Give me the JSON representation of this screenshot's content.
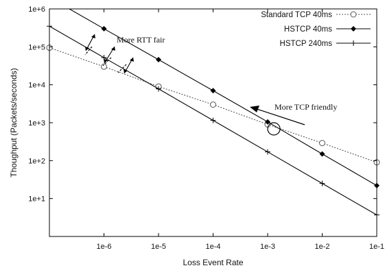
{
  "chart_data": {
    "type": "line",
    "xlabel": "Loss Event Rate",
    "ylabel": "Thoughput (Packets/seconds)",
    "xscale": "log",
    "yscale": "log",
    "xlim": [
      1e-07,
      0.1
    ],
    "ylim": [
      1,
      1000000
    ],
    "x_ticks": [
      {
        "value": 1e-06,
        "label": "1e-6"
      },
      {
        "value": 1e-05,
        "label": "1e-5"
      },
      {
        "value": 0.0001,
        "label": "1e-4"
      },
      {
        "value": 0.001,
        "label": "1e-3"
      },
      {
        "value": 0.01,
        "label": "1e-2"
      },
      {
        "value": 0.1,
        "label": "1e-1"
      }
    ],
    "y_ticks": [
      {
        "value": 10,
        "label": "1e+1"
      },
      {
        "value": 100,
        "label": "1e+2"
      },
      {
        "value": 1000,
        "label": "1e+3"
      },
      {
        "value": 10000,
        "label": "1e+4"
      },
      {
        "value": 100000,
        "label": "1e+5"
      },
      {
        "value": 1000000,
        "label": "1e+6"
      }
    ],
    "grid": false,
    "legend_position": "top-right",
    "series": [
      {
        "name": "Standard TCP 40ms",
        "style": "dotted",
        "marker": "open-circle",
        "color": "#000000",
        "points": [
          {
            "x": 1e-07,
            "y": 95000
          },
          {
            "x": 1e-06,
            "y": 30000
          },
          {
            "x": 1e-05,
            "y": 9000
          },
          {
            "x": 0.0001,
            "y": 3000
          },
          {
            "x": 0.001,
            "y": 900
          },
          {
            "x": 0.01,
            "y": 290
          },
          {
            "x": 0.1,
            "y": 90
          }
        ]
      },
      {
        "name": "HSTCP 40ms",
        "style": "solid",
        "marker": "filled-diamond",
        "color": "#000000",
        "points": [
          {
            "x": 1e-07,
            "y": 2000000
          },
          {
            "x": 1e-06,
            "y": 300000
          },
          {
            "x": 1e-05,
            "y": 46000
          },
          {
            "x": 0.0001,
            "y": 7000
          },
          {
            "x": 0.001,
            "y": 1050
          },
          {
            "x": 0.01,
            "y": 150
          },
          {
            "x": 0.1,
            "y": 22
          }
        ]
      },
      {
        "name": "HSTCP 240ms",
        "style": "solid",
        "marker": "plus",
        "color": "#000000",
        "points": [
          {
            "x": 1e-07,
            "y": 350000
          },
          {
            "x": 1e-06,
            "y": 52000
          },
          {
            "x": 1e-05,
            "y": 7800
          },
          {
            "x": 0.0001,
            "y": 1150
          },
          {
            "x": 0.001,
            "y": 170
          },
          {
            "x": 0.01,
            "y": 25
          },
          {
            "x": 0.1,
            "y": 3.7
          }
        ]
      }
    ],
    "annotations": [
      {
        "text": "More RTT fair"
      },
      {
        "text": "More TCP friendly"
      }
    ]
  }
}
